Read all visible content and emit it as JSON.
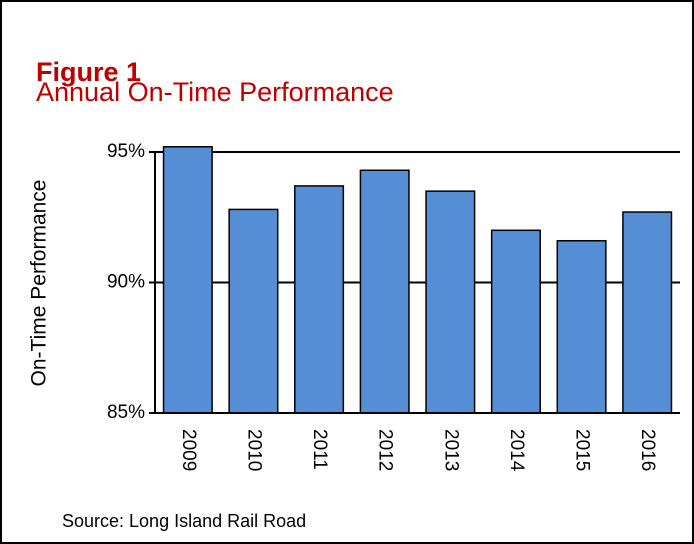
{
  "chart_data": {
    "type": "bar",
    "title": "Figure 1",
    "subtitle": "Annual On-Time Performance",
    "y_label": "On-Time Performance",
    "source": "Source: Long Island Rail Road",
    "categories": [
      "2009",
      "2010",
      "2011",
      "2012",
      "2013",
      "2014",
      "2015",
      "2016"
    ],
    "values": [
      95.2,
      92.8,
      93.7,
      94.3,
      93.5,
      92.0,
      91.6,
      92.7
    ],
    "color": "#558ed5",
    "ylim": [
      85,
      95
    ],
    "yticks": [
      {
        "value": 85,
        "label": "85%"
      },
      {
        "value": 90,
        "label": "90%"
      },
      {
        "value": 95,
        "label": "95%"
      }
    ],
    "grid": true
  }
}
